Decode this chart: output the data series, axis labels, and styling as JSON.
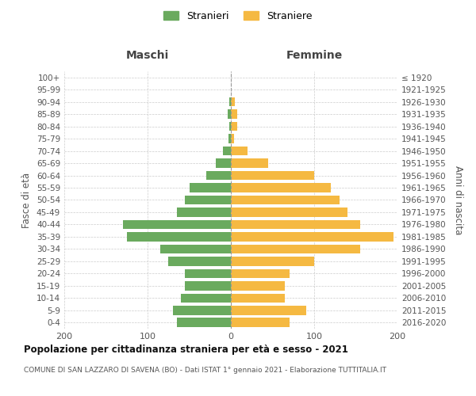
{
  "age_groups": [
    "0-4",
    "5-9",
    "10-14",
    "15-19",
    "20-24",
    "25-29",
    "30-34",
    "35-39",
    "40-44",
    "45-49",
    "50-54",
    "55-59",
    "60-64",
    "65-69",
    "70-74",
    "75-79",
    "80-84",
    "85-89",
    "90-94",
    "95-99",
    "100+"
  ],
  "birth_years": [
    "2016-2020",
    "2011-2015",
    "2006-2010",
    "2001-2005",
    "1996-2000",
    "1991-1995",
    "1986-1990",
    "1981-1985",
    "1976-1980",
    "1971-1975",
    "1966-1970",
    "1961-1965",
    "1956-1960",
    "1951-1955",
    "1946-1950",
    "1941-1945",
    "1936-1940",
    "1931-1935",
    "1926-1930",
    "1921-1925",
    "≤ 1920"
  ],
  "maschi": [
    65,
    70,
    60,
    55,
    55,
    75,
    85,
    125,
    130,
    65,
    55,
    50,
    30,
    18,
    10,
    3,
    2,
    4,
    2,
    0,
    0
  ],
  "femmine": [
    70,
    90,
    65,
    65,
    70,
    100,
    155,
    195,
    155,
    140,
    130,
    120,
    100,
    45,
    20,
    4,
    8,
    8,
    5,
    0,
    0
  ],
  "maschi_color": "#6aaa5e",
  "femmine_color": "#f5b942",
  "grid_color": "#cccccc",
  "dashed_line_color": "#999999",
  "title": "Popolazione per cittadinanza straniera per età e sesso - 2021",
  "subtitle": "COMUNE DI SAN LAZZARO DI SAVENA (BO) - Dati ISTAT 1° gennaio 2021 - Elaborazione TUTTITALIA.IT",
  "xlabel_left": "Maschi",
  "xlabel_right": "Femmine",
  "ylabel_left": "Fasce di età",
  "ylabel_right": "Anni di nascita",
  "legend_maschi": "Stranieri",
  "legend_femmine": "Straniere",
  "xlim": 200,
  "xtick_labels": [
    "200",
    "100",
    "0",
    "100",
    "200"
  ],
  "bar_height": 0.75,
  "tick_fontsize": 7.5,
  "axis_label_fontsize": 8.5,
  "header_fontsize": 10,
  "legend_fontsize": 9,
  "title_fontsize": 8.5,
  "subtitle_fontsize": 6.5
}
